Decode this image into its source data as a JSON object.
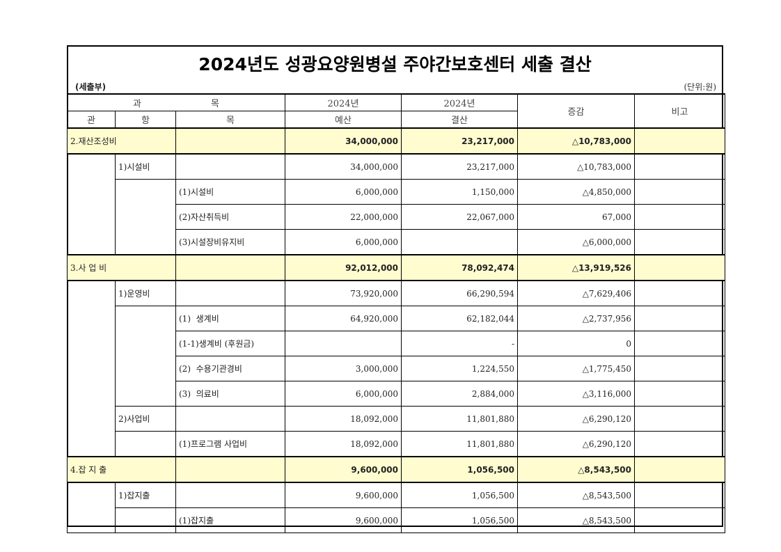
{
  "title": "2024년도 성광요양원병설 주야간보호센터 세출 결산",
  "subtitle_left": "(세출부)",
  "unit": "(단위:원)",
  "header": {
    "gwamok": [
      "과",
      "목"
    ],
    "gwan": "관",
    "hang": "항",
    "mok": "목",
    "budget_year": "2024년",
    "budget": "예산",
    "settle_year": "2024년",
    "settle": "결산",
    "diff": "증감",
    "note": "비고"
  },
  "sections": [
    {
      "label": "2.재산조성비",
      "budget": "34,000,000",
      "settle": "23,217,000",
      "diff": "△10,783,000",
      "hangs": [
        {
          "label": "1)시설비",
          "budget": "34,000,000",
          "settle": "23,217,000",
          "diff": "△10,783,000",
          "moks": [
            {
              "label": "(1)시설비",
              "budget": "6,000,000",
              "settle": "1,150,000",
              "diff": "△4,850,000"
            },
            {
              "label": "(2)자산취득비",
              "budget": "22,000,000",
              "settle": "22,067,000",
              "diff": "67,000"
            },
            {
              "label": "(3)시설장비유지비",
              "budget": "6,000,000",
              "settle": "",
              "diff": "△6,000,000"
            }
          ]
        }
      ]
    },
    {
      "label": "3.사 업 비",
      "budget": "92,012,000",
      "settle": "78,092,474",
      "diff": "△13,919,526",
      "hangs": [
        {
          "label": "1)운영비",
          "budget": "73,920,000",
          "settle": "66,290,594",
          "diff": "△7,629,406",
          "moks": [
            {
              "label": "(1)  생계비",
              "budget": "64,920,000",
              "settle": "62,182,044",
              "diff": "△2,737,956"
            },
            {
              "label": "(1-1)생계비 (후원금)",
              "budget": "",
              "settle": "-",
              "diff": "0"
            },
            {
              "label": "(2)  수용기관경비",
              "budget": "3,000,000",
              "settle": "1,224,550",
              "diff": "△1,775,450"
            },
            {
              "label": "(3)  의료비",
              "budget": "6,000,000",
              "settle": "2,884,000",
              "diff": "△3,116,000"
            }
          ]
        },
        {
          "label": "2)사업비",
          "budget": "18,092,000",
          "settle": "11,801,880",
          "diff": "△6,290,120",
          "moks": [
            {
              "label": "(1)프로그램 사업비",
              "budget": "18,092,000",
              "settle": "11,801,880",
              "diff": "△6,290,120"
            }
          ]
        }
      ]
    },
    {
      "label": "4.잡 지 출",
      "budget": "9,600,000",
      "settle": "1,056,500",
      "diff": "△8,543,500",
      "hangs": [
        {
          "label": "1)잡지출",
          "budget": "9,600,000",
          "settle": "1,056,500",
          "diff": "△8,543,500",
          "moks": [
            {
              "label": "(1)잡지출",
              "budget": "9,600,000",
              "settle": "1,056,500",
              "diff": "△8,543,500"
            }
          ]
        }
      ]
    }
  ],
  "colors": {
    "section_bg": "#fffdd0",
    "border": "#000000"
  }
}
